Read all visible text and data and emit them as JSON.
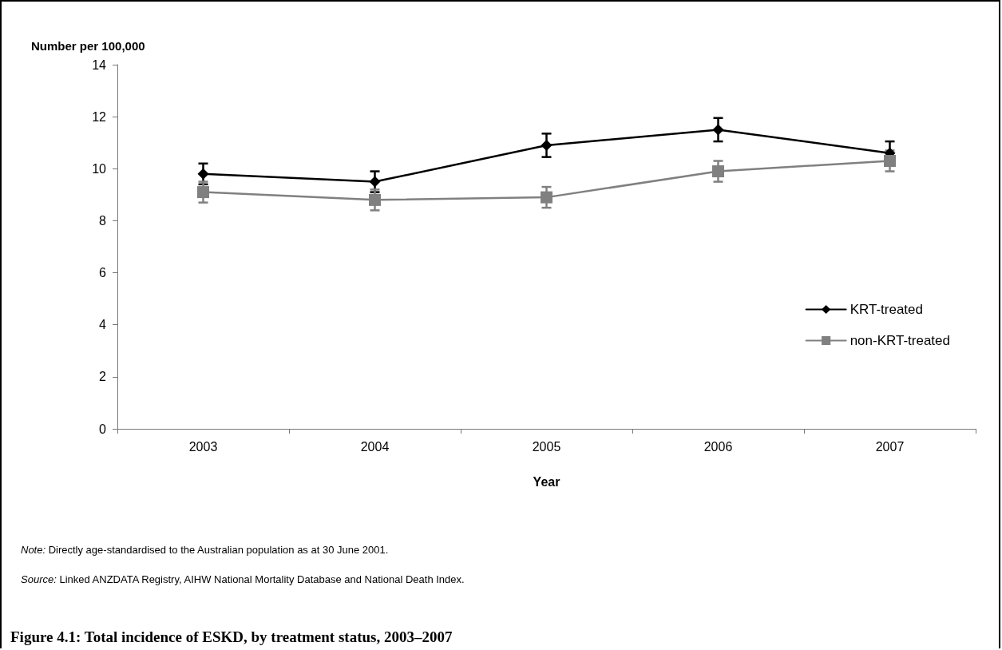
{
  "chart_data": {
    "type": "line",
    "title": "Figure 4.1: Total incidence of ESKD, by treatment status, 2003–2007",
    "xlabel": "Year",
    "ylabel": "Number per 100,000",
    "categories": [
      "2003",
      "2004",
      "2005",
      "2006",
      "2007"
    ],
    "series": [
      {
        "name": "KRT-treated",
        "color": "#000000",
        "marker": "diamond",
        "values": [
          9.8,
          9.5,
          10.9,
          11.5,
          10.6
        ],
        "errors": [
          0.4,
          0.4,
          0.45,
          0.45,
          0.45
        ]
      },
      {
        "name": "non-KRT-treated",
        "color": "#808080",
        "marker": "square",
        "values": [
          9.1,
          8.8,
          8.9,
          9.9,
          10.3
        ],
        "errors": [
          0.4,
          0.4,
          0.4,
          0.4,
          0.4
        ]
      }
    ],
    "ylim": [
      0,
      14
    ],
    "yticks": [
      0,
      2,
      4,
      6,
      8,
      10,
      12,
      14
    ],
    "grid": false,
    "legend": "right",
    "line_style": "solid",
    "annotations": [
      "Note: Directly age-standardised to the Australian population as at 30 June 2001.",
      "Source: Linked ANZDATA Registry, AIHW National Mortality Database and National Death Index."
    ]
  }
}
